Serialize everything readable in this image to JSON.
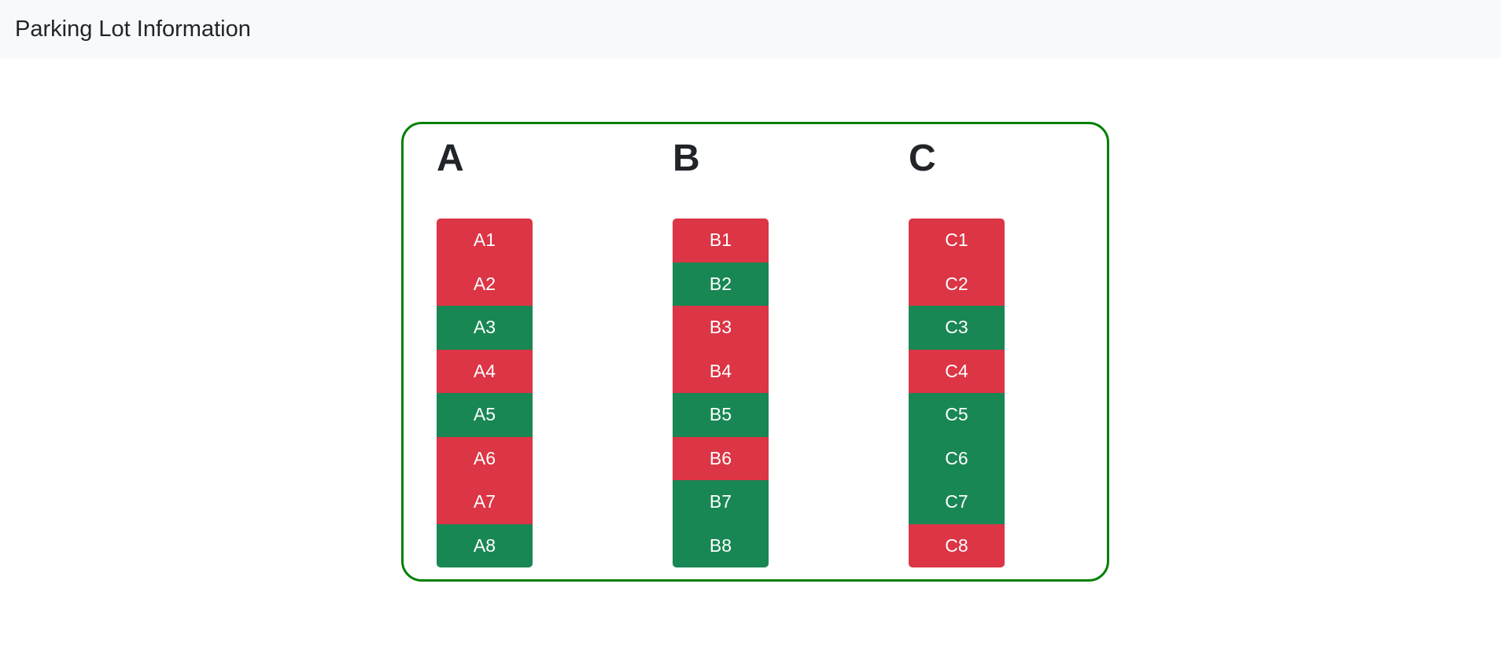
{
  "navbar": {
    "brand": "Parking Lot Information"
  },
  "colors": {
    "occupied": "#dc3545",
    "available": "#198754",
    "border": "#008000"
  },
  "sections": [
    {
      "name": "A",
      "slots": [
        {
          "label": "A1",
          "status": "occupied"
        },
        {
          "label": "A2",
          "status": "occupied"
        },
        {
          "label": "A3",
          "status": "available"
        },
        {
          "label": "A4",
          "status": "occupied"
        },
        {
          "label": "A5",
          "status": "available"
        },
        {
          "label": "A6",
          "status": "occupied"
        },
        {
          "label": "A7",
          "status": "occupied"
        },
        {
          "label": "A8",
          "status": "available"
        }
      ]
    },
    {
      "name": "B",
      "slots": [
        {
          "label": "B1",
          "status": "occupied"
        },
        {
          "label": "B2",
          "status": "available"
        },
        {
          "label": "B3",
          "status": "occupied"
        },
        {
          "label": "B4",
          "status": "occupied"
        },
        {
          "label": "B5",
          "status": "available"
        },
        {
          "label": "B6",
          "status": "occupied"
        },
        {
          "label": "B7",
          "status": "available"
        },
        {
          "label": "B8",
          "status": "available"
        }
      ]
    },
    {
      "name": "C",
      "slots": [
        {
          "label": "C1",
          "status": "occupied"
        },
        {
          "label": "C2",
          "status": "occupied"
        },
        {
          "label": "C3",
          "status": "available"
        },
        {
          "label": "C4",
          "status": "occupied"
        },
        {
          "label": "C5",
          "status": "available"
        },
        {
          "label": "C6",
          "status": "available"
        },
        {
          "label": "C7",
          "status": "available"
        },
        {
          "label": "C8",
          "status": "occupied"
        }
      ]
    }
  ]
}
